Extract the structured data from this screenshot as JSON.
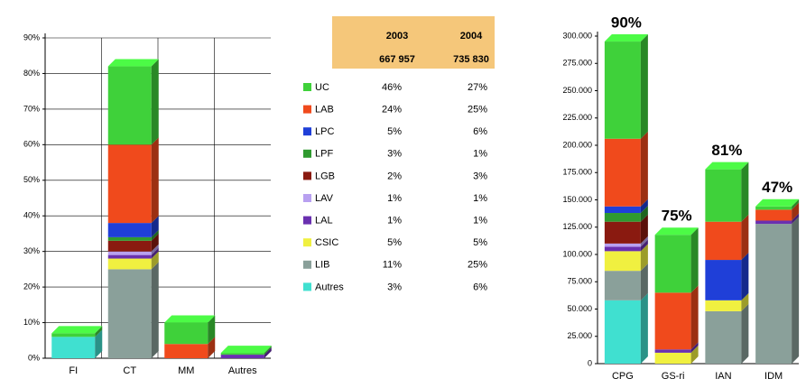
{
  "chart_data": [
    {
      "type": "bar",
      "stacked": true,
      "grid": true,
      "categories": [
        "FI",
        "CT",
        "MM",
        "Autres"
      ],
      "ylim": [
        0,
        90
      ],
      "yticks": [
        {
          "value": 0,
          "label": "0%"
        },
        {
          "value": 10,
          "label": "10%"
        },
        {
          "value": 20,
          "label": "20%"
        },
        {
          "value": 30,
          "label": "30%"
        },
        {
          "value": 40,
          "label": "40%"
        },
        {
          "value": 50,
          "label": "50%"
        },
        {
          "value": 60,
          "label": "60%"
        },
        {
          "value": 70,
          "label": "70%"
        },
        {
          "value": 80,
          "label": "80%"
        },
        {
          "value": 90,
          "label": "90%"
        }
      ],
      "series": [
        {
          "name": "UC",
          "color": "#3fd13a",
          "values": [
            1,
            22,
            6,
            0.5
          ]
        },
        {
          "name": "LAB",
          "color": "#f04a1c",
          "values": [
            0,
            22,
            4,
            0
          ]
        },
        {
          "name": "LPC",
          "color": "#1f3fd8",
          "values": [
            0,
            4,
            0,
            0
          ]
        },
        {
          "name": "LPF",
          "color": "#2f9a2f",
          "values": [
            0,
            1,
            0,
            0
          ]
        },
        {
          "name": "LGB",
          "color": "#8a1a10",
          "values": [
            0,
            3,
            0,
            0
          ]
        },
        {
          "name": "LAV",
          "color": "#b8a0f0",
          "values": [
            0,
            1,
            0,
            0
          ]
        },
        {
          "name": "LAL",
          "color": "#6a30b0",
          "values": [
            0,
            1,
            0,
            1
          ]
        },
        {
          "name": "CSIC",
          "color": "#f0f040",
          "values": [
            0,
            3,
            0,
            0
          ]
        },
        {
          "name": "LIB",
          "color": "#8aa09a",
          "values": [
            0,
            25,
            0,
            0
          ]
        },
        {
          "name": "Autres",
          "color": "#40e0d0",
          "values": [
            6,
            0,
            0,
            0
          ]
        }
      ]
    },
    {
      "type": "bar",
      "stacked": true,
      "grid": false,
      "categories": [
        "CPG",
        "GS-ri",
        "IAN",
        "IDM"
      ],
      "annotations": [
        "90%",
        "75%",
        "81%",
        "47%"
      ],
      "ylim": [
        0,
        300000
      ],
      "yticks": [
        {
          "value": 0,
          "label": "0"
        },
        {
          "value": 25000,
          "label": "25.000"
        },
        {
          "value": 50000,
          "label": "50.000"
        },
        {
          "value": 75000,
          "label": "75.000"
        },
        {
          "value": 100000,
          "label": "100.000"
        },
        {
          "value": 125000,
          "label": "125.000"
        },
        {
          "value": 150000,
          "label": "150.000"
        },
        {
          "value": 175000,
          "label": "175.000"
        },
        {
          "value": 200000,
          "label": "200.000"
        },
        {
          "value": 225000,
          "label": "225.000"
        },
        {
          "value": 250000,
          "label": "250.000"
        },
        {
          "value": 275000,
          "label": "275.000"
        },
        {
          "value": 300000,
          "label": "300.000"
        }
      ],
      "series": [
        {
          "name": "UC",
          "color": "#3fd13a",
          "values": [
            89000,
            53000,
            48000,
            3000
          ]
        },
        {
          "name": "LAB",
          "color": "#f04a1c",
          "values": [
            62000,
            52000,
            35000,
            10000
          ]
        },
        {
          "name": "LPC",
          "color": "#1f3fd8",
          "values": [
            6000,
            0,
            37000,
            0
          ]
        },
        {
          "name": "LPF",
          "color": "#2f9a2f",
          "values": [
            8000,
            0,
            0,
            0
          ]
        },
        {
          "name": "LGB",
          "color": "#8a1a10",
          "values": [
            20000,
            0,
            0,
            0
          ]
        },
        {
          "name": "LAV",
          "color": "#b8a0f0",
          "values": [
            3000,
            0,
            0,
            0
          ]
        },
        {
          "name": "LAL",
          "color": "#6a30b0",
          "values": [
            4000,
            3000,
            0,
            3000
          ]
        },
        {
          "name": "CSIC",
          "color": "#f0f040",
          "values": [
            18000,
            10000,
            10000,
            0
          ]
        },
        {
          "name": "LIB",
          "color": "#8aa09a",
          "values": [
            27000,
            0,
            48000,
            128000
          ]
        },
        {
          "name": "Autres",
          "color": "#40e0d0",
          "values": [
            58000,
            0,
            0,
            0
          ]
        }
      ]
    }
  ],
  "table": {
    "header": [
      [
        "2003",
        "2004"
      ],
      [
        "667 957",
        "735 830"
      ]
    ],
    "rows": [
      [
        "46%",
        "27%"
      ],
      [
        "24%",
        "25%"
      ],
      [
        "5%",
        "6%"
      ],
      [
        "3%",
        "1%"
      ],
      [
        "2%",
        "3%"
      ],
      [
        "1%",
        "1%"
      ],
      [
        "1%",
        "1%"
      ],
      [
        "5%",
        "5%"
      ],
      [
        "11%",
        "25%"
      ],
      [
        "3%",
        "6%"
      ]
    ]
  }
}
